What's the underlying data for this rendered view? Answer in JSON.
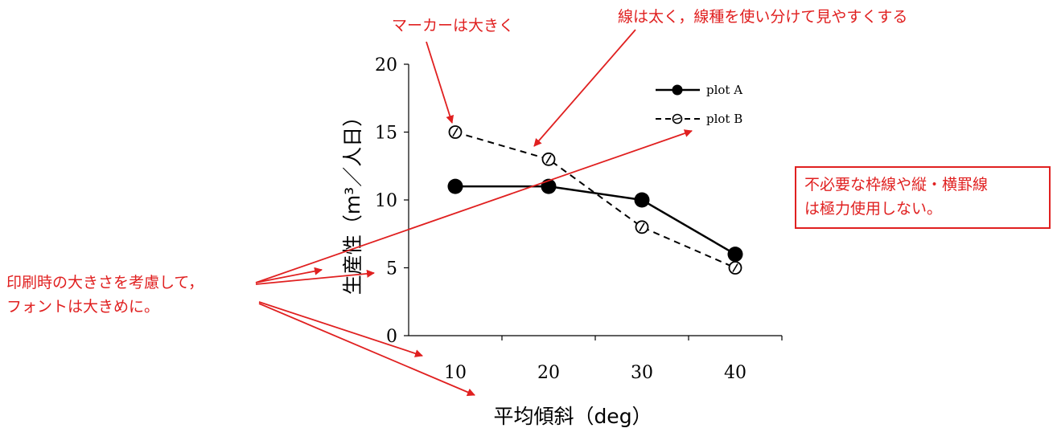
{
  "chart_data": {
    "type": "line",
    "categories": [
      "10",
      "20",
      "30",
      "40"
    ],
    "x": [
      10,
      20,
      30,
      40
    ],
    "series": [
      {
        "name": "plot A",
        "values": [
          11,
          11,
          10,
          6
        ],
        "line_style": "solid",
        "marker": "filled-circle"
      },
      {
        "name": "plot B",
        "values": [
          15,
          13,
          8,
          5
        ],
        "line_style": "dashed",
        "marker": "open-circle-slash"
      }
    ],
    "title": "",
    "xlabel": "平均傾斜（deg）",
    "ylabel": "生産性（m³／人日）",
    "ylim": [
      0,
      20
    ],
    "yticks": [
      "0",
      "5",
      "10",
      "15",
      "20"
    ],
    "grid": false,
    "legend_position": "top-right",
    "colors": {
      "series": "#000000",
      "annotation": "#e02020"
    }
  },
  "annotations": {
    "markers_note": "マーカーは大きく",
    "lines_note": "線は太く，線種を使い分けて見やすくする",
    "gridlines_note": [
      "不必要な枠線や縦・横罫線",
      "は極力使用しない。"
    ],
    "font_note": [
      "印刷時の大きさを考慮して，",
      "フォントは大きめに。"
    ]
  }
}
